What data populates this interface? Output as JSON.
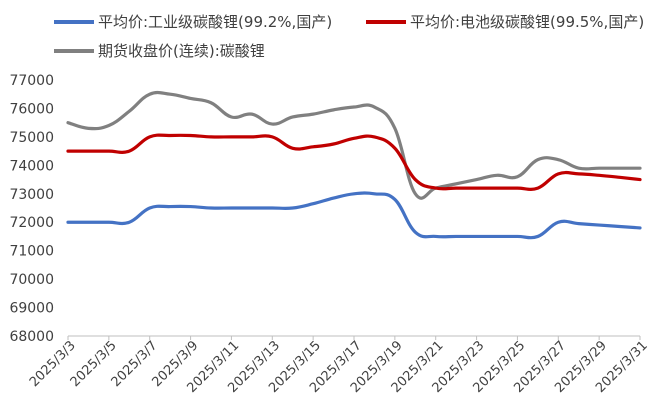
{
  "chart_data": {
    "type": "line",
    "title": "",
    "xlabel": "",
    "ylabel": "",
    "ylim": [
      68000,
      77000
    ],
    "yticks": [
      68000,
      69000,
      70000,
      71000,
      72000,
      73000,
      74000,
      75000,
      76000,
      77000
    ],
    "grid": false,
    "legend_position": "top",
    "x": [
      "2025/3/3",
      "2025/3/4",
      "2025/3/5",
      "2025/3/6",
      "2025/3/7",
      "2025/3/8",
      "2025/3/9",
      "2025/3/10",
      "2025/3/11",
      "2025/3/12",
      "2025/3/13",
      "2025/3/14",
      "2025/3/15",
      "2025/3/16",
      "2025/3/17",
      "2025/3/18",
      "2025/3/19",
      "2025/3/20",
      "2025/3/21",
      "2025/3/22",
      "2025/3/23",
      "2025/3/24",
      "2025/3/25",
      "2025/3/26",
      "2025/3/27",
      "2025/3/28",
      "2025/3/29",
      "2025/3/30",
      "2025/3/31"
    ],
    "x_tick_labels": [
      "2025/3/3",
      "2025/3/5",
      "2025/3/7",
      "2025/3/9",
      "2025/3/11",
      "2025/3/13",
      "2025/3/15",
      "2025/3/17",
      "2025/3/19",
      "2025/3/21",
      "2025/3/23",
      "2025/3/25",
      "2025/3/27",
      "2025/3/29",
      "2025/3/31"
    ],
    "series": [
      {
        "name": "平均价:工业级碳酸锂(99.2%,国产)",
        "color": "#4472C4",
        "values": [
          72000,
          72000,
          72000,
          72000,
          72500,
          72550,
          72550,
          72500,
          72500,
          72500,
          72500,
          72500,
          72650,
          72850,
          73000,
          73000,
          72800,
          71650,
          71500,
          71500,
          71500,
          71500,
          71500,
          71500,
          72000,
          71950,
          71900,
          71850,
          71800
        ]
      },
      {
        "name": "平均价:电池级碳酸锂(99.5%,国产)",
        "color": "#C00000",
        "values": [
          74500,
          74500,
          74500,
          74500,
          75000,
          75050,
          75050,
          75000,
          75000,
          75000,
          75000,
          74600,
          74650,
          74750,
          74950,
          75000,
          74600,
          73500,
          73200,
          73200,
          73200,
          73200,
          73200,
          73200,
          73700,
          73700,
          73650,
          73580,
          73500
        ]
      },
      {
        "name": "期货收盘价(连续):碳酸锂",
        "color": "#808080",
        "values": [
          75500,
          75300,
          75400,
          75900,
          76500,
          76500,
          76350,
          76200,
          75700,
          75800,
          75450,
          75700,
          75800,
          75950,
          76050,
          76050,
          75300,
          73000,
          73200,
          73350,
          73500,
          73650,
          73600,
          74200,
          74200,
          73900,
          73900,
          73900,
          73900
        ]
      }
    ]
  }
}
